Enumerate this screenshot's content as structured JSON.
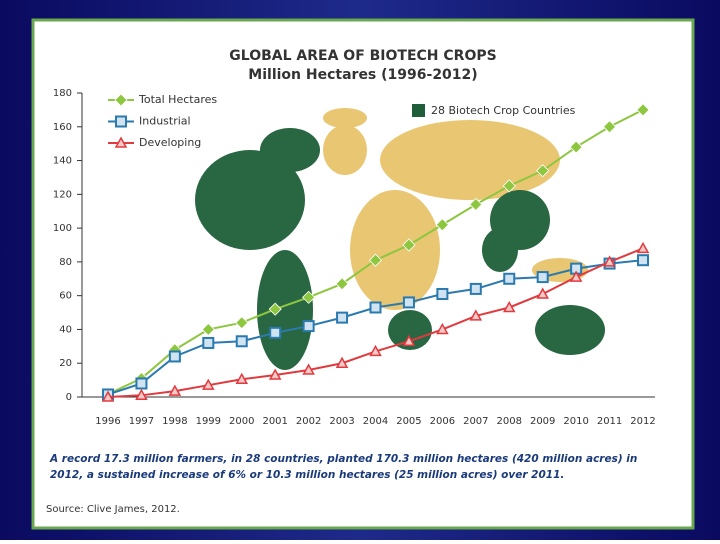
{
  "chart_data": {
    "type": "line",
    "title": "GLOBAL AREA OF BIOTECH CROPS",
    "subtitle": "Million Hectares (1996-2012)",
    "categories": [
      "1996",
      "1997",
      "1998",
      "1999",
      "2000",
      "2001",
      "2002",
      "2003",
      "2004",
      "2005",
      "2006",
      "2007",
      "2008",
      "2009",
      "2010",
      "2011",
      "2012"
    ],
    "series": [
      {
        "name": "Total Hectares",
        "color": "#8dc63f",
        "marker": "diamond",
        "values": [
          1.7,
          11,
          28,
          40,
          44,
          52,
          59,
          67,
          81,
          90,
          102,
          114,
          125,
          134,
          148,
          160,
          170
        ]
      },
      {
        "name": "Industrial",
        "color": "#2a7ab0",
        "marker": "square",
        "values": [
          1.5,
          8,
          24,
          32,
          33,
          38,
          42,
          47,
          53,
          56,
          61,
          64,
          70,
          71,
          76,
          79,
          81
        ]
      },
      {
        "name": "Developing",
        "color": "#e03a3e",
        "marker": "triangle",
        "values": [
          0,
          1,
          3.5,
          7,
          10.5,
          13,
          16,
          20,
          27,
          33,
          40,
          48,
          53,
          61,
          71,
          80,
          88
        ]
      }
    ],
    "ylim": [
      0,
      180
    ],
    "yticks": [
      0,
      20,
      40,
      60,
      80,
      100,
      120,
      140,
      160,
      180
    ],
    "map_legend": "28 Biotech Crop Countries",
    "caption": [
      "A record 17.3 million farmers, in 28 countries, planted 170.3 million hectares (420 million acres) in",
      "2012, a sustained increase of 6% or 10.3 million hectares (25 million acres) over 2011."
    ],
    "source": "Source: Clive James, 2012."
  }
}
